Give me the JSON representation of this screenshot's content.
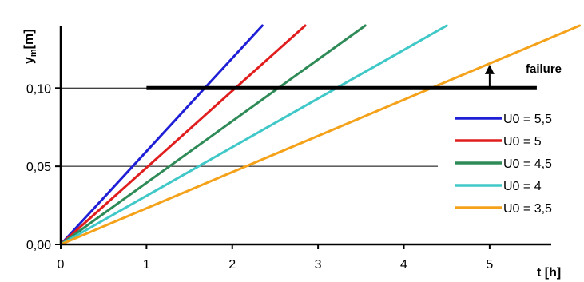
{
  "chart_data": {
    "type": "line",
    "title": "",
    "xlabel": "t [h]",
    "ylabel_main": "y",
    "ylabel_sub": "m",
    "ylabel_suffix": "[m]",
    "xlim": [
      0,
      6.1
    ],
    "ylim": [
      0,
      0.14
    ],
    "x_ticks": [
      0,
      1,
      2,
      3,
      4,
      5
    ],
    "y_ticks": [
      {
        "value": 0.0,
        "label": "0,00"
      },
      {
        "value": 0.05,
        "label": "0,05"
      },
      {
        "value": 0.1,
        "label": "0,10"
      }
    ],
    "grid": "horizontal lines at 0,05 and 0,10",
    "legend_position": "right",
    "series": [
      {
        "name": "U0 = 5,5",
        "color": "#1f1fd6",
        "x": [
          0,
          2.35
        ],
        "y": [
          0,
          0.14
        ]
      },
      {
        "name": "U0 = 5",
        "color": "#e01e1e",
        "x": [
          0,
          2.85
        ],
        "y": [
          0,
          0.14
        ]
      },
      {
        "name": "U0 = 4,5",
        "color": "#2e8b57",
        "x": [
          0,
          3.55
        ],
        "y": [
          0,
          0.14
        ]
      },
      {
        "name": "U0 = 4",
        "color": "#40c8c8",
        "x": [
          0,
          4.5
        ],
        "y": [
          0,
          0.14
        ]
      },
      {
        "name": "U0 = 3,5",
        "color": "#f5a21b",
        "x": [
          0,
          6.05
        ],
        "y": [
          0,
          0.14
        ]
      }
    ],
    "threshold": {
      "y": 0.1,
      "x_start": 1.0,
      "x_end": 5.55,
      "label": "failure",
      "arrow_x": 5.0,
      "arrow_y_top": 0.113
    }
  }
}
